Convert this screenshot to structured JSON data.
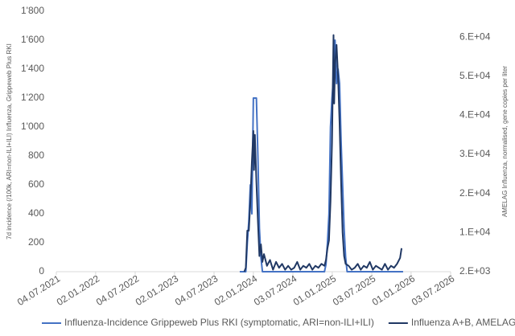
{
  "chart_data": {
    "type": "line",
    "y_label": "7d incidence (/100k, ARI=non-ILI+ILI) Influenza, Grippeweb Plus RKI",
    "y2_label": "AMELAG Influenza, normalised, gene copies per liter",
    "xlim": [
      "04.07.2021",
      "03.07.2026"
    ],
    "xticks": [
      "04.07.2021",
      "02.01.2022",
      "04.07.2022",
      "02.01.2023",
      "04.07.2023",
      "02.01.2024",
      "03.07.2024",
      "01.01.2025",
      "03.07.2025",
      "01.01.2026",
      "03.07.2026"
    ],
    "ylim": [
      0,
      1800
    ],
    "yticks": [
      0,
      200,
      400,
      600,
      800,
      {
        "value": 1000,
        "label": "1'000"
      },
      {
        "value": 1200,
        "label": "1'200"
      },
      {
        "value": 1400,
        "label": "1'400"
      },
      {
        "value": 1600,
        "label": "1'600"
      },
      {
        "value": 1800,
        "label": "1'800"
      }
    ],
    "y2lim": [
      2000,
      68600
    ],
    "y2ticks": [
      {
        "value": 2000,
        "label": "2.E+03"
      },
      {
        "value": 12000,
        "label": "1.E+04"
      },
      {
        "value": 22000,
        "label": "2.E+04"
      },
      {
        "value": 32000,
        "label": "3.E+04"
      },
      {
        "value": 42000,
        "label": "4.E+04"
      },
      {
        "value": 52000,
        "label": "5.E+04"
      },
      {
        "value": 62000,
        "label": "6.E+04"
      }
    ],
    "grid": false,
    "legend": "bottom",
    "series": [
      {
        "name": "Influenza-Incidence Grippeweb Plus RKI (symptomatic, ARI=non-ILI+ILI)",
        "color": "#4472c4",
        "axis": "y",
        "x": [
          "31.10.2023",
          "28.11.2023",
          "05.12.2023",
          "12.12.2023",
          "19.12.2023",
          "26.12.2023",
          "02.01.2024",
          "09.01.2024",
          "16.01.2024",
          "23.01.2024",
          "30.01.2024",
          "06.02.2024",
          "13.02.2024",
          "12.03.2024",
          "09.04.2024",
          "07.05.2024",
          "04.06.2024",
          "02.07.2024",
          "30.07.2024",
          "27.08.2024",
          "24.09.2024",
          "22.10.2024",
          "19.11.2024",
          "26.11.2024",
          "03.12.2024",
          "10.12.2024",
          "17.12.2024",
          "24.12.2024",
          "31.12.2024",
          "07.01.2025",
          "14.01.2025",
          "21.01.2025",
          "28.01.2025",
          "04.02.2025",
          "11.02.2025",
          "18.02.2025",
          "25.02.2025",
          "04.03.2025",
          "11.03.2025",
          "08.04.2025",
          "06.05.2025",
          "03.06.2025",
          "01.07.2025",
          "29.07.2025",
          "26.08.2025",
          "23.09.2025",
          "21.10.2025",
          "18.11.2025",
          "25.11.2025"
        ],
        "values": [
          0,
          0,
          200,
          350,
          600,
          400,
          1200,
          1200,
          1200,
          800,
          300,
          100,
          0,
          0,
          0,
          0,
          0,
          0,
          0,
          0,
          0,
          0,
          0,
          0,
          50,
          200,
          400,
          1000,
          1200,
          1350,
          1600,
          1300,
          1400,
          1300,
          900,
          600,
          300,
          100,
          0,
          0,
          0,
          0,
          0,
          0,
          0,
          0,
          0,
          0,
          0
        ]
      },
      {
        "name": "Influenza A+B, AMELAG",
        "color": "#203864",
        "axis": "y2",
        "x": [
          "21.11.2023",
          "28.11.2023",
          "05.12.2023",
          "12.12.2023",
          "19.12.2023",
          "26.12.2023",
          "02.01.2024",
          "05.01.2024",
          "09.01.2024",
          "16.01.2024",
          "23.01.2024",
          "30.01.2024",
          "06.02.2024",
          "13.02.2024",
          "20.02.2024",
          "05.03.2024",
          "19.03.2024",
          "02.04.2024",
          "16.04.2024",
          "30.04.2024",
          "14.05.2024",
          "28.05.2024",
          "11.06.2024",
          "25.06.2024",
          "09.07.2024",
          "23.07.2024",
          "06.08.2024",
          "20.08.2024",
          "03.09.2024",
          "17.09.2024",
          "01.10.2024",
          "15.10.2024",
          "29.10.2024",
          "12.11.2024",
          "26.11.2024",
          "03.12.2024",
          "10.12.2024",
          "17.12.2024",
          "24.12.2024",
          "31.12.2024",
          "07.01.2025",
          "10.01.2025",
          "14.01.2025",
          "21.01.2025",
          "28.01.2025",
          "04.02.2025",
          "11.02.2025",
          "18.02.2025",
          "25.02.2025",
          "04.03.2025",
          "18.03.2025",
          "01.04.2025",
          "15.04.2025",
          "29.04.2025",
          "13.05.2025",
          "27.05.2025",
          "10.06.2025",
          "24.06.2025",
          "08.07.2025",
          "22.07.2025",
          "05.08.2025",
          "19.08.2025",
          "02.09.2025",
          "16.09.2025",
          "30.09.2025",
          "14.10.2025",
          "28.10.2025",
          "11.11.2025",
          "18.11.2025"
        ],
        "values": [
          2000,
          3000,
          12500,
          12500,
          20000,
          30000,
          38000,
          28000,
          37000,
          25000,
          15000,
          6000,
          9000,
          4500,
          6500,
          3500,
          5000,
          2500,
          4500,
          3000,
          4000,
          2500,
          3500,
          2500,
          3000,
          4500,
          2500,
          3500,
          3000,
          4000,
          2500,
          3500,
          3000,
          4000,
          3500,
          5000,
          8000,
          10000,
          20000,
          35000,
          62500,
          45000,
          55000,
          60000,
          52000,
          40000,
          25000,
          12000,
          6000,
          4000,
          3500,
          2500,
          3000,
          4000,
          2500,
          3500,
          3000,
          4500,
          2500,
          3500,
          3000,
          2500,
          4000,
          2500,
          3500,
          3000,
          4000,
          5500,
          8000
        ]
      }
    ]
  }
}
